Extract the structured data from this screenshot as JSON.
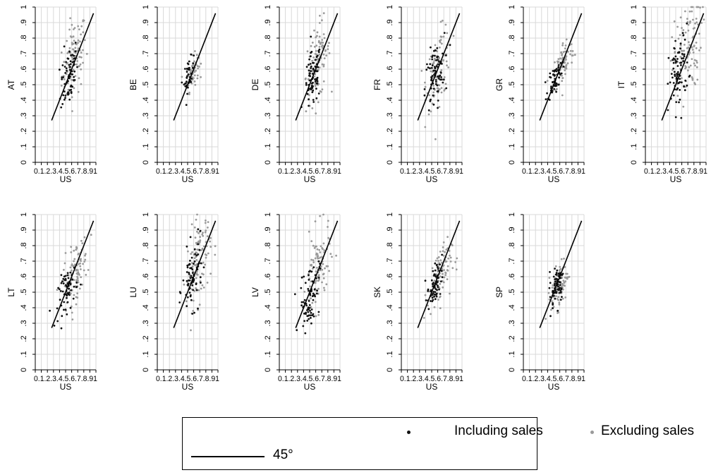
{
  "chart_data": {
    "type": "scatter",
    "grid": true,
    "xlim": [
      0,
      1
    ],
    "ylim": [
      0,
      1
    ],
    "x_ticks": [
      "0",
      ".1",
      ".2",
      ".3",
      ".4",
      ".5",
      ".6",
      ".7",
      ".8",
      ".9",
      "1"
    ],
    "x_tick_text": "0.1.2.3.4.5.6.7.8.91",
    "y_ticks": [
      "0",
      ".1",
      ".2",
      ".3",
      ".4",
      ".5",
      ".6",
      ".7",
      ".8",
      ".9",
      "1"
    ],
    "xlabel": "US",
    "reference_line": {
      "name": "45°",
      "from": [
        0.27,
        0.27
      ],
      "to": [
        0.96,
        0.96
      ]
    },
    "colors": {
      "including": "#111111",
      "excluding": "#9a9a9a",
      "grid": "#d9d9d9",
      "line": "#000000"
    },
    "panels": [
      {
        "ylabel": "AT",
        "including": {
          "center": [
            0.56,
            0.57
          ],
          "spread": [
            0.07,
            0.1
          ],
          "n": 70
        },
        "excluding": {
          "center": [
            0.64,
            0.66
          ],
          "spread": [
            0.1,
            0.12
          ],
          "n": 95
        }
      },
      {
        "ylabel": "BE",
        "including": {
          "center": [
            0.52,
            0.56
          ],
          "spread": [
            0.04,
            0.05
          ],
          "n": 40
        },
        "excluding": {
          "center": [
            0.58,
            0.58
          ],
          "spread": [
            0.05,
            0.05
          ],
          "n": 60
        }
      },
      {
        "ylabel": "DE",
        "including": {
          "center": [
            0.55,
            0.53
          ],
          "spread": [
            0.07,
            0.09
          ],
          "n": 75
        },
        "excluding": {
          "center": [
            0.64,
            0.65
          ],
          "spread": [
            0.1,
            0.12
          ],
          "n": 95
        }
      },
      {
        "ylabel": "FR",
        "including": {
          "center": [
            0.55,
            0.55
          ],
          "spread": [
            0.08,
            0.1
          ],
          "n": 75
        },
        "excluding": {
          "center": [
            0.62,
            0.62
          ],
          "spread": [
            0.1,
            0.11
          ],
          "n": 95
        }
      },
      {
        "ylabel": "GR",
        "including": {
          "center": [
            0.52,
            0.54
          ],
          "spread": [
            0.06,
            0.05
          ],
          "n": 60
        },
        "excluding": {
          "center": [
            0.66,
            0.64
          ],
          "spread": [
            0.09,
            0.07
          ],
          "n": 85
        }
      },
      {
        "ylabel": "IT",
        "including": {
          "center": [
            0.55,
            0.58
          ],
          "spread": [
            0.08,
            0.12
          ],
          "n": 80
        },
        "excluding": {
          "center": [
            0.68,
            0.72
          ],
          "spread": [
            0.12,
            0.15
          ],
          "n": 110
        }
      },
      {
        "ylabel": "LT",
        "including": {
          "center": [
            0.54,
            0.52
          ],
          "spread": [
            0.08,
            0.07
          ],
          "n": 65
        },
        "excluding": {
          "center": [
            0.66,
            0.63
          ],
          "spread": [
            0.1,
            0.09
          ],
          "n": 95
        }
      },
      {
        "ylabel": "LU",
        "including": {
          "center": [
            0.58,
            0.6
          ],
          "spread": [
            0.08,
            0.1
          ],
          "n": 75
        },
        "excluding": {
          "center": [
            0.68,
            0.7
          ],
          "spread": [
            0.1,
            0.13
          ],
          "n": 110
        }
      },
      {
        "ylabel": "LV",
        "including": {
          "center": [
            0.5,
            0.48
          ],
          "spread": [
            0.08,
            0.1
          ],
          "n": 75
        },
        "excluding": {
          "center": [
            0.64,
            0.64
          ],
          "spread": [
            0.1,
            0.13
          ],
          "n": 100
        }
      },
      {
        "ylabel": "SK",
        "including": {
          "center": [
            0.55,
            0.54
          ],
          "spread": [
            0.06,
            0.07
          ],
          "n": 60
        },
        "excluding": {
          "center": [
            0.63,
            0.6
          ],
          "spread": [
            0.1,
            0.09
          ],
          "n": 90
        }
      },
      {
        "ylabel": "SP",
        "including": {
          "center": [
            0.55,
            0.55
          ],
          "spread": [
            0.06,
            0.07
          ],
          "n": 65
        },
        "excluding": {
          "center": [
            0.6,
            0.55
          ],
          "spread": [
            0.07,
            0.07
          ],
          "n": 90
        }
      }
    ],
    "legend": {
      "placement": "bottom-center",
      "items": [
        {
          "key": "including",
          "label": "Including sales"
        },
        {
          "key": "excluding",
          "label": "Excluding sales"
        },
        {
          "key": "line",
          "label": "45°"
        }
      ]
    }
  }
}
